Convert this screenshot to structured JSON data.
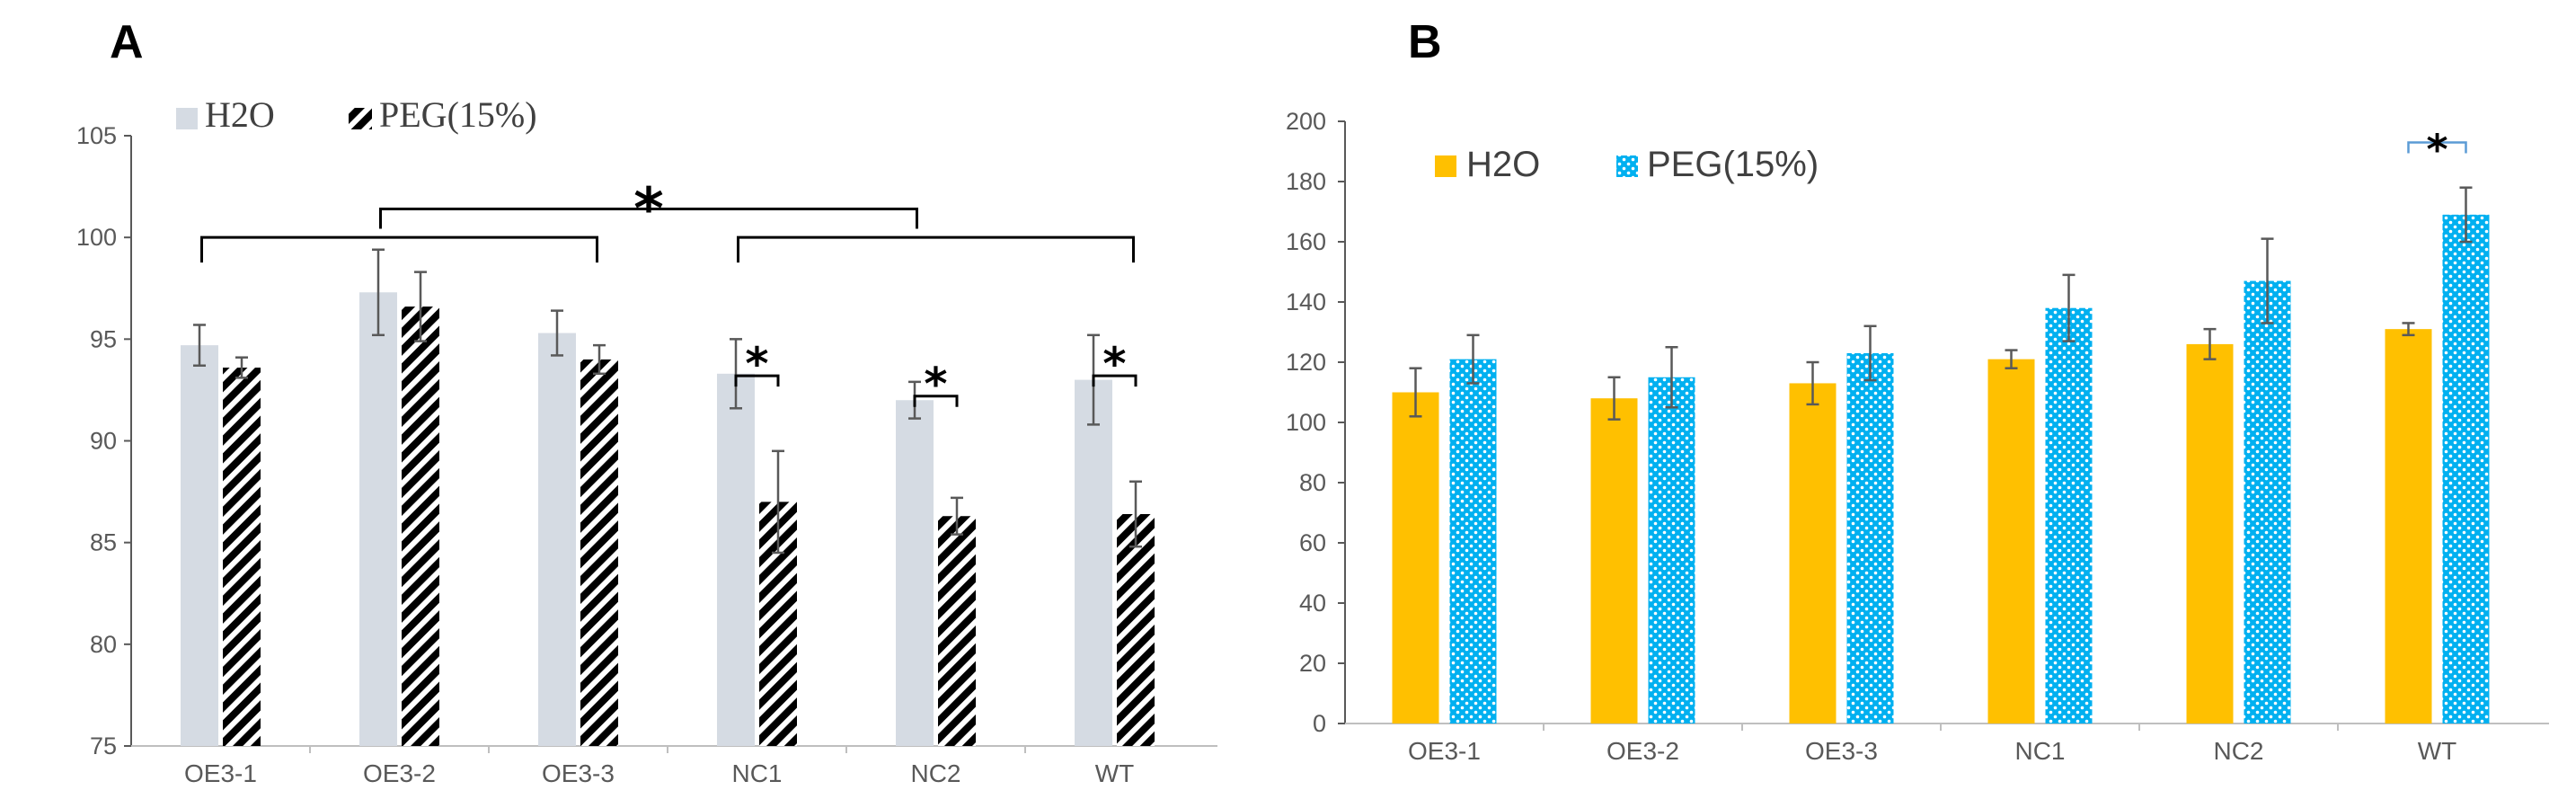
{
  "chart_data": [
    {
      "panel": "A",
      "type": "bar",
      "categories": [
        "OE3-1",
        "OE3-2",
        "OE3-3",
        "NC1",
        "NC2",
        "WT"
      ],
      "ylim": [
        75,
        105
      ],
      "yticks": [
        75,
        80,
        85,
        90,
        95,
        100,
        105
      ],
      "grid": false,
      "legend_position": "top-left",
      "series": [
        {
          "name": "H2O",
          "color": "#d5dbe3",
          "pattern": "solid",
          "values": [
            94.7,
            97.3,
            95.3,
            93.3,
            92.0,
            93.0
          ],
          "errors": [
            1.0,
            2.1,
            1.1,
            1.7,
            0.9,
            2.2
          ]
        },
        {
          "name": "PEG(15%)",
          "color": "#000000",
          "pattern": "diagonal-hatch",
          "values": [
            93.6,
            96.6,
            94.0,
            87.0,
            86.3,
            86.4
          ],
          "errors": [
            0.5,
            1.7,
            0.7,
            2.5,
            0.9,
            1.6
          ]
        }
      ],
      "significance": [
        {
          "label": "*",
          "type": "group-bracket",
          "groups": [
            "OE3-1",
            "OE3-2",
            "OE3-3"
          ],
          "level": 100.0
        },
        {
          "label": "*",
          "type": "group-bracket",
          "groups": [
            "NC1",
            "NC2",
            "WT"
          ],
          "level": 100.0
        },
        {
          "label": "*",
          "type": "between-groups",
          "from": "OE3-2",
          "to": "NC2",
          "level": 101.4
        },
        {
          "label": "*",
          "type": "pair",
          "category": "NC1",
          "level": 93.2
        },
        {
          "label": "*",
          "type": "pair",
          "category": "NC2",
          "level": 92.2
        },
        {
          "label": "*",
          "type": "pair",
          "category": "WT",
          "level": 93.2
        }
      ]
    },
    {
      "panel": "B",
      "type": "bar",
      "categories": [
        "OE3-1",
        "OE3-2",
        "OE3-3",
        "NC1",
        "NC2",
        "WT"
      ],
      "ylim": [
        0,
        200
      ],
      "yticks": [
        0,
        20,
        40,
        60,
        80,
        100,
        120,
        140,
        160,
        180,
        200
      ],
      "grid": false,
      "legend_position": "top-left",
      "series": [
        {
          "name": "H2O",
          "color": "#ffc000",
          "pattern": "solid",
          "values": [
            110,
            108,
            113,
            121,
            126,
            131
          ],
          "errors": [
            8,
            7,
            7,
            3,
            5,
            2
          ]
        },
        {
          "name": "PEG(15%)",
          "color": "#00b0f0",
          "pattern": "dotted",
          "values": [
            121,
            115,
            123,
            138,
            147,
            169
          ],
          "errors": [
            8,
            10,
            9,
            11,
            14,
            9
          ]
        }
      ],
      "significance": [
        {
          "label": "*",
          "type": "pair",
          "category": "WT",
          "level": 193
        }
      ]
    }
  ],
  "panels": {
    "a": {
      "letter": "A"
    },
    "b": {
      "letter": "B"
    }
  }
}
